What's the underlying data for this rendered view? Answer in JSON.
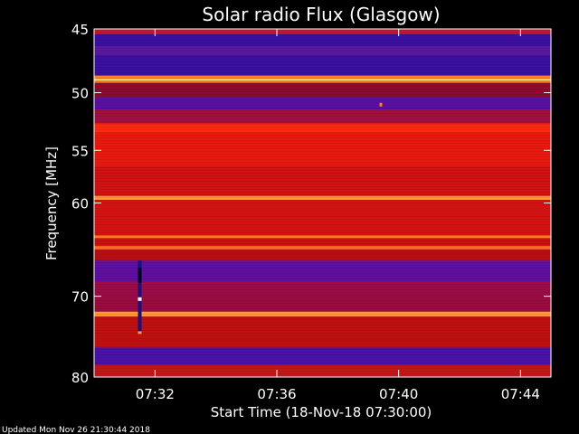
{
  "chart_data": {
    "type": "heatmap",
    "title": "Solar radio Flux (Glasgow)",
    "xlabel": "Start Time (18-Nov-18 07:30:00)",
    "ylabel": "Frequency [MHz]",
    "x_ticks": [
      "07:32",
      "07:36",
      "07:40",
      "07:44"
    ],
    "x_tick_minutes": [
      2,
      6,
      10,
      14
    ],
    "x_range_minutes": [
      0,
      15
    ],
    "y_ticks": [
      45,
      50,
      55,
      60,
      70,
      80
    ],
    "y_scale": "log",
    "y_range_mhz": [
      45,
      80
    ],
    "grid": false,
    "colors": {
      "background": "#000000",
      "text": "#ffffff",
      "base": "#d01010"
    },
    "bands": [
      {
        "from": 45.0,
        "to": 45.4,
        "color": "#c01830"
      },
      {
        "from": 45.4,
        "to": 46.3,
        "color": "#3a10a0"
      },
      {
        "from": 46.3,
        "to": 47.0,
        "color": "#5a18a0"
      },
      {
        "from": 47.0,
        "to": 48.6,
        "color": "#3a10a0"
      },
      {
        "from": 48.6,
        "to": 49.2,
        "color": "#ff8020"
      },
      {
        "from": 48.9,
        "to": 49.0,
        "color": "#ffee90"
      },
      {
        "from": 49.2,
        "to": 50.4,
        "color": "#8a0c30"
      },
      {
        "from": 50.4,
        "to": 51.4,
        "color": "#5a10a0"
      },
      {
        "from": 51.4,
        "to": 52.6,
        "color": "#a01040"
      },
      {
        "from": 52.6,
        "to": 53.4,
        "color": "#ff2a10"
      },
      {
        "from": 53.4,
        "to": 56.5,
        "color": "#e81a10"
      },
      {
        "from": 56.5,
        "to": 59.3,
        "color": "#d01212"
      },
      {
        "from": 59.3,
        "to": 59.7,
        "color": "#ff9a30"
      },
      {
        "from": 59.7,
        "to": 63.3,
        "color": "#d41212"
      },
      {
        "from": 63.3,
        "to": 63.6,
        "color": "#ff7a20"
      },
      {
        "from": 63.6,
        "to": 64.4,
        "color": "#c81010"
      },
      {
        "from": 64.4,
        "to": 64.8,
        "color": "#ff6a20"
      },
      {
        "from": 64.8,
        "to": 66.0,
        "color": "#b81010"
      },
      {
        "from": 66.0,
        "to": 68.3,
        "color": "#6010a0"
      },
      {
        "from": 68.3,
        "to": 70.2,
        "color": "#9c0c48"
      },
      {
        "from": 70.2,
        "to": 71.8,
        "color": "#9a0c40"
      },
      {
        "from": 71.8,
        "to": 72.4,
        "color": "#ff9a30"
      },
      {
        "from": 72.4,
        "to": 76.2,
        "color": "#c01010"
      },
      {
        "from": 76.2,
        "to": 78.4,
        "color": "#4a12a8"
      },
      {
        "from": 78.4,
        "to": 80.0,
        "color": "#c01818"
      }
    ],
    "burst": {
      "minute": 1.5,
      "from_mhz": 66.0,
      "to_mhz": 74.5
    },
    "spot": {
      "minute": 9.4,
      "mhz": 51.0
    }
  },
  "footer": {
    "text": "Updated Mon Nov 26 21:30:44 2018"
  }
}
